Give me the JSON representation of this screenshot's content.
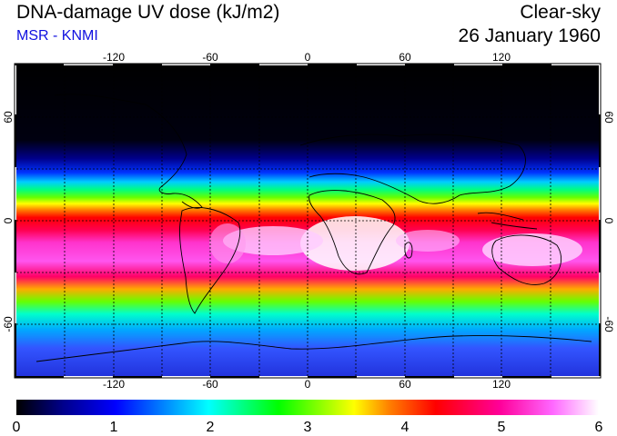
{
  "header": {
    "title": "DNA-damage UV dose (kJ/m2)",
    "source": "MSR - KNMI",
    "sky_condition": "Clear-sky",
    "date": "26 January 1960"
  },
  "map": {
    "lon_ticks": [
      "-120",
      "-60",
      "0",
      "60",
      "120"
    ],
    "lat_ticks": [
      "60",
      "0",
      "-60"
    ]
  },
  "colorbar": {
    "min": 0,
    "max": 6,
    "tick_labels": [
      "0",
      "1",
      "2",
      "3",
      "4",
      "5",
      "6"
    ],
    "colors": [
      "#000000",
      "#00008b",
      "#0000ff",
      "#00ffff",
      "#00ff00",
      "#ffff00",
      "#ff8000",
      "#ff0000",
      "#ff0099",
      "#ff66ff",
      "#ffffff"
    ]
  }
}
